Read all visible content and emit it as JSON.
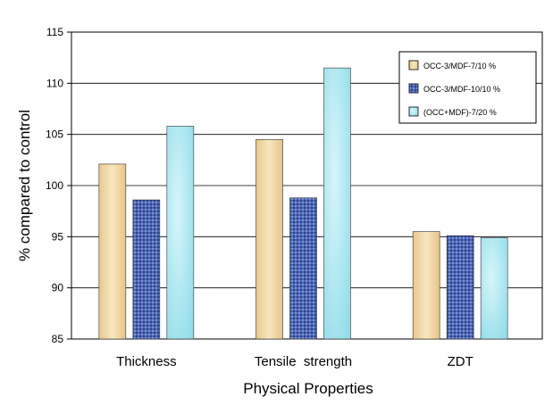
{
  "chart_data": {
    "type": "bar",
    "title": "",
    "xlabel": "Physical Properties",
    "ylabel": "% compared to control",
    "ylim": [
      85,
      115
    ],
    "yticks": [
      85,
      90,
      95,
      100,
      105,
      110,
      115
    ],
    "grid": true,
    "legend_position": "top-right",
    "categories": [
      "Thickness",
      "Tensile  strength",
      "ZDT"
    ],
    "series": [
      {
        "name": "OCC-3/MDF-7/10 %",
        "values": [
          102.1,
          104.5,
          95.5
        ],
        "color": "#f2d9a6"
      },
      {
        "name": "OCC-3/MDF-10/10 %",
        "values": [
          98.6,
          98.8,
          95.1
        ],
        "color": "#4a62b0"
      },
      {
        "name": "(OCC+MDF)-7/20 %",
        "values": [
          105.8,
          111.5,
          94.9
        ],
        "color": "#a8e6f0"
      }
    ]
  }
}
